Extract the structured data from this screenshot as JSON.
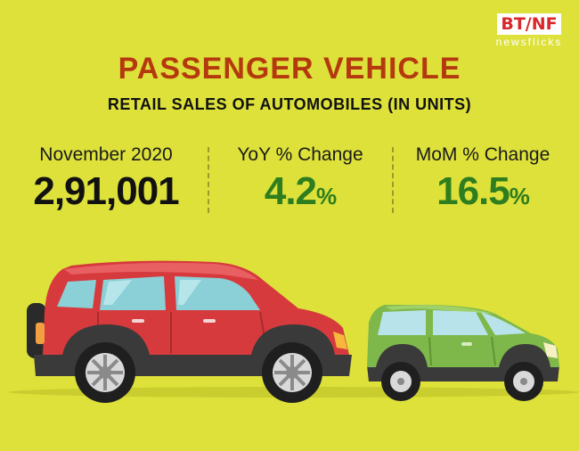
{
  "logo": {
    "main": "BT/NF",
    "sub": "newsflicks"
  },
  "title": "PASSENGER VEHICLE",
  "subtitle": "RETAIL SALES OF AUTOMOBILES (IN UNITS)",
  "stats": [
    {
      "label": "November 2020",
      "value": "2,91,001",
      "suffix": ""
    },
    {
      "label": "YoY % Change",
      "value": "4.2",
      "suffix": "%"
    },
    {
      "label": "MoM % Change",
      "value": "16.5",
      "suffix": "%"
    }
  ],
  "colors": {
    "background": "#dde13a",
    "title": "#b5390f",
    "positive": "#2e7d1f",
    "logo_red": "#d8282b",
    "suv_body": "#d63a3d",
    "hatch_body": "#7fb84a"
  },
  "icons": [
    "red-suv-icon",
    "green-hatchback-icon"
  ]
}
